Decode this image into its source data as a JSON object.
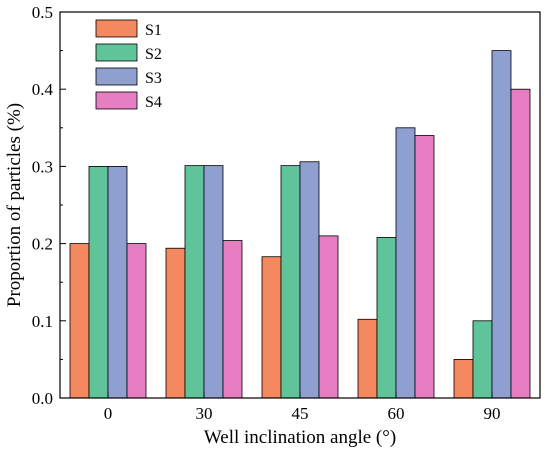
{
  "chart_data": {
    "type": "bar",
    "title": "",
    "xlabel": "Well inclination angle (°)",
    "ylabel": "Proportion of particles (%)",
    "categories": [
      "0",
      "30",
      "45",
      "60",
      "90"
    ],
    "ylim": [
      0,
      0.5
    ],
    "yticks": [
      "0.0",
      "0.1",
      "0.2",
      "0.3",
      "0.4",
      "0.5"
    ],
    "grid": false,
    "legend_position": "top-left",
    "series": [
      {
        "name": "S1",
        "color": "#f4895f",
        "values": [
          0.2,
          0.194,
          0.183,
          0.102,
          0.05
        ]
      },
      {
        "name": "S2",
        "color": "#5fc49a",
        "values": [
          0.3,
          0.301,
          0.301,
          0.208,
          0.1
        ]
      },
      {
        "name": "S3",
        "color": "#8f9fd0",
        "values": [
          0.3,
          0.301,
          0.306,
          0.35,
          0.45
        ]
      },
      {
        "name": "S4",
        "color": "#e57fc1",
        "values": [
          0.2,
          0.204,
          0.21,
          0.34,
          0.4
        ]
      }
    ]
  }
}
